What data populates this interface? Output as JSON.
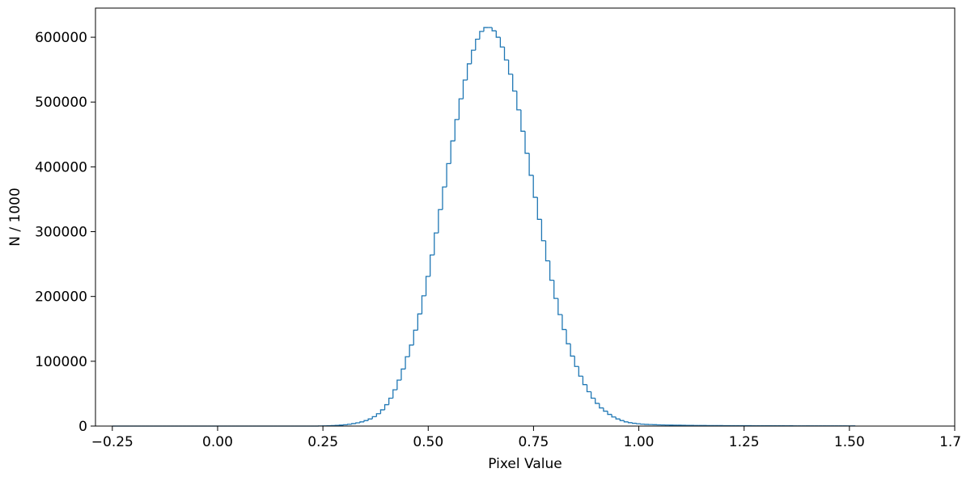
{
  "chart_data": {
    "type": "histogram",
    "xlabel": "Pixel Value",
    "ylabel": "N / 1000",
    "xlim": [
      -0.29,
      1.75
    ],
    "ylim": [
      0,
      645000
    ],
    "xticks": [
      -0.25,
      0.0,
      0.25,
      0.5,
      0.75,
      1.0,
      1.25,
      1.5,
      1.75
    ],
    "xtick_labels": [
      "−0.25",
      "0.00",
      "0.25",
      "0.50",
      "0.75",
      "1.00",
      "1.25",
      "1.50",
      "1.75"
    ],
    "yticks": [
      0,
      100000,
      200000,
      300000,
      400000,
      500000,
      600000
    ],
    "ytick_labels": [
      "0",
      "100000",
      "200000",
      "300000",
      "400000",
      "500000",
      "600000"
    ],
    "grid": false,
    "legend": false,
    "series": [
      {
        "color": "#1f77b4",
        "bin_edges_start": -0.25,
        "bin_width": 0.0098,
        "values": [
          0,
          0,
          0,
          0,
          0,
          0,
          0,
          0,
          0,
          0,
          0,
          0,
          0,
          0,
          0,
          0,
          0,
          0,
          0,
          0,
          0,
          0,
          0,
          0,
          0,
          0,
          0,
          0,
          0,
          0,
          0,
          0,
          0,
          0,
          0,
          0,
          0,
          0,
          0,
          0,
          0,
          0,
          0,
          0,
          0,
          0,
          0,
          0,
          0,
          0,
          200,
          300,
          500,
          700,
          1000,
          1500,
          2000,
          2800,
          3800,
          5000,
          6500,
          8500,
          11000,
          14500,
          19000,
          25000,
          33000,
          43000,
          56000,
          71000,
          88000,
          107000,
          125000,
          148000,
          173000,
          201000,
          231000,
          264000,
          298000,
          334000,
          369000,
          405000,
          440000,
          473000,
          505000,
          534000,
          559000,
          580000,
          597000,
          609000,
          615000,
          615000,
          610000,
          600000,
          585000,
          565000,
          543000,
          517000,
          488000,
          455000,
          421000,
          387000,
          353000,
          319000,
          286000,
          255000,
          225000,
          197000,
          172000,
          149000,
          127000,
          108000,
          92000,
          77000,
          64000,
          53000,
          43000,
          35000,
          28000,
          23000,
          18000,
          14000,
          11000,
          8500,
          6500,
          5200,
          4300,
          3600,
          3000,
          2600,
          2300,
          2100,
          1900,
          1700,
          1600,
          1500,
          1400,
          1300,
          1200,
          1100,
          1000,
          950,
          900,
          850,
          800,
          760,
          720,
          690,
          660,
          630,
          600,
          580,
          560,
          540,
          520,
          500,
          480,
          460,
          440,
          420,
          400,
          390,
          380,
          370,
          360,
          350,
          340,
          330,
          320,
          310,
          300,
          290,
          280,
          270,
          260,
          250,
          240,
          230,
          220,
          210
        ]
      }
    ]
  }
}
